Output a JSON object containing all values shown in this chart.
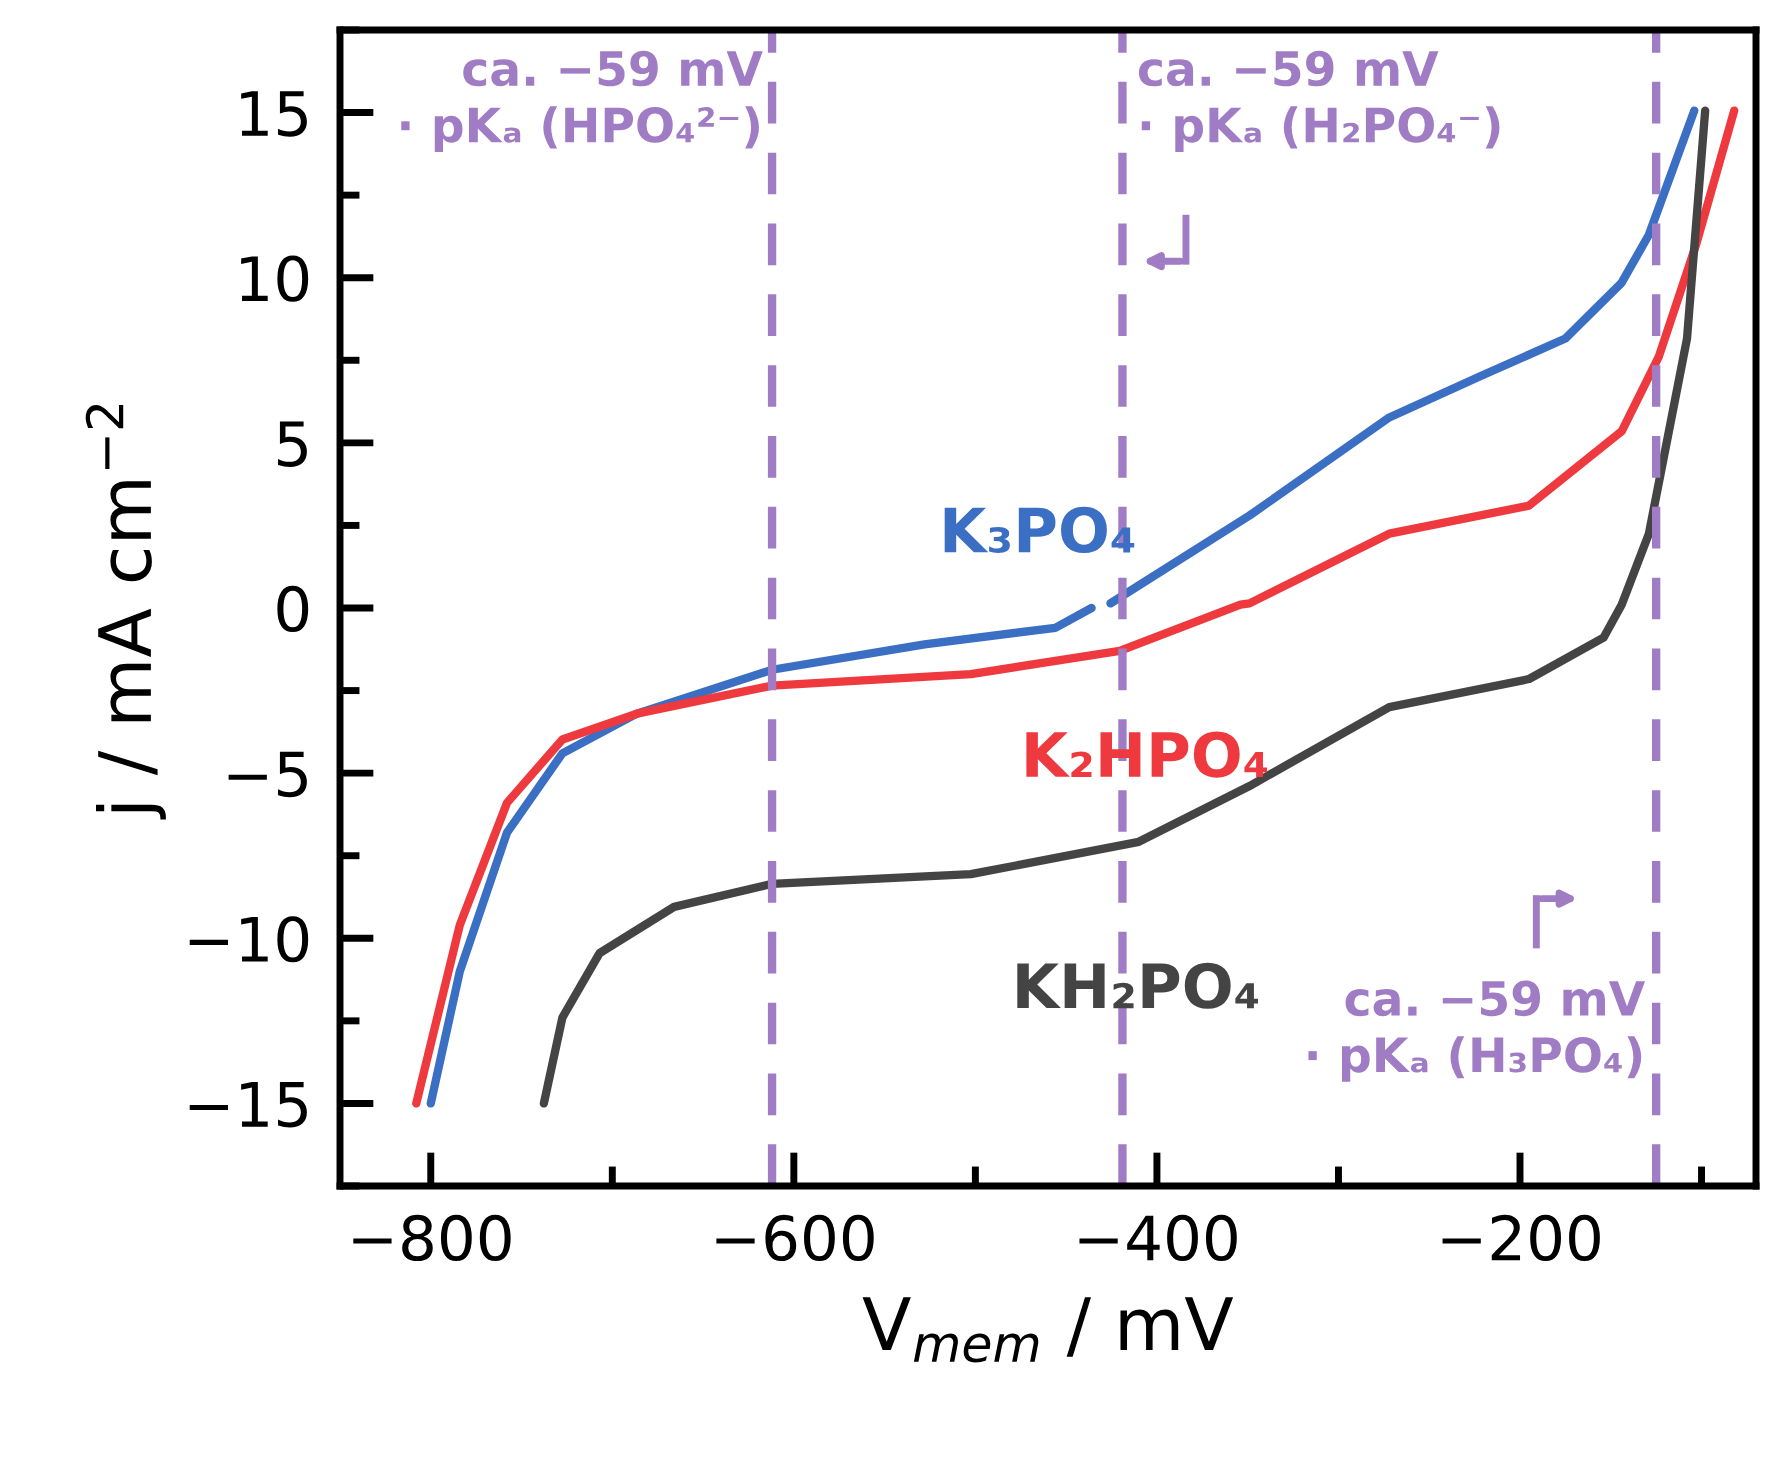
{
  "chart_data": {
    "type": "line",
    "xlabel": "V$_{mem}$ / mV",
    "ylabel": "j / mA cm$^{−2}$",
    "xlim": [
      -850,
      -70
    ],
    "xticks": [
      -800,
      -600,
      -400,
      -200
    ],
    "ylim": [
      -17.5,
      17.5
    ],
    "yticks": [
      -15,
      -10,
      -5,
      0,
      5,
      10,
      15
    ],
    "grid": false,
    "legend": false,
    "marker": "none",
    "line_style": "solid",
    "series": [
      {
        "name": "K₃PO₄",
        "color": "#3a6fc4",
        "x": [
          -800,
          -784,
          -758,
          -727.5,
          -686.5,
          -612,
          -528,
          -456,
          -436,
          null,
          -425.6,
          -349,
          -272,
          -221,
          -175,
          -144,
          -129,
          -104
        ],
        "values": [
          -15,
          -11.0,
          -6.8,
          -4.4,
          -3.2,
          -1.87,
          -1.1,
          -0.6,
          0.0,
          null,
          0.14,
          2.8,
          5.77,
          7.04,
          8.16,
          9.85,
          11.3,
          15.06
        ]
      },
      {
        "name": "K₂HPO₄",
        "color": "#ee3a3f",
        "x": [
          -808,
          -784,
          -758,
          -727.5,
          -686.5,
          -612,
          -502.5,
          -420.5,
          -354,
          -349,
          -272,
          -195,
          -144,
          -123.6,
          -103,
          -82
        ],
        "values": [
          -15,
          -9.6,
          -5.9,
          -3.98,
          -3.2,
          -2.35,
          -2.0,
          -1.3,
          0.1,
          0.14,
          2.25,
          3.1,
          5.35,
          7.6,
          11.0,
          15.06
        ]
      },
      {
        "name": "KH₂PO₄",
        "color": "#444444",
        "x": [
          -737.7,
          -727.5,
          -707,
          -666,
          -612,
          -502.5,
          -410,
          -349,
          -272,
          -195,
          -154,
          -144,
          -129,
          -108,
          -98
        ],
        "values": [
          -15,
          -12.4,
          -10.45,
          -9.05,
          -8.35,
          -8.06,
          -7.08,
          -5.39,
          -3.0,
          -2.15,
          -0.9,
          0.1,
          2.25,
          8.16,
          15.06
        ]
      }
    ],
    "ref_lines": [
      {
        "axis": "x",
        "value": -612,
        "label": "ca. −59 mV\n· pKₐ (HPO₄²⁻)",
        "color": "#a07cc4",
        "line_style": "dashed"
      },
      {
        "axis": "x",
        "value": -419,
        "label": "ca. −59 mV\n· pKₐ (H₂PO₄⁻)",
        "color": "#a07cc4",
        "line_style": "dashed"
      },
      {
        "axis": "x",
        "value": -125,
        "label": "ca. −59 mV\n· pKₐ (H₃PO₄)",
        "color": "#a07cc4",
        "line_style": "dashed"
      }
    ]
  }
}
